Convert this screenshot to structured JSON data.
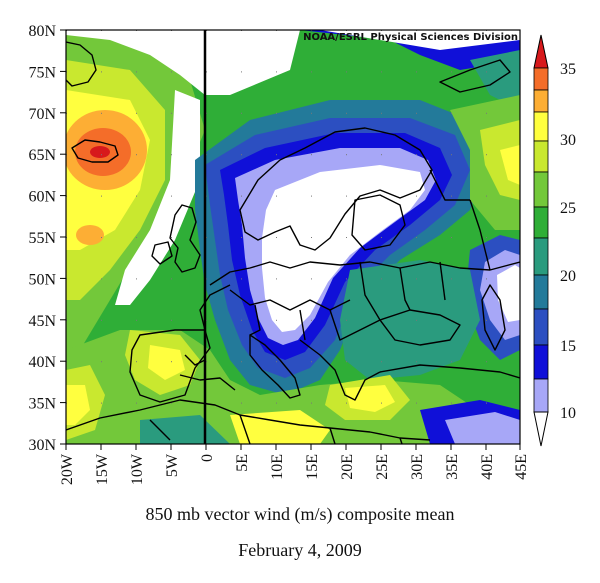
{
  "map": {
    "credit": "NOAA/ESRL Physical Sciences Division",
    "lat_labels": [
      "80N",
      "75N",
      "70N",
      "65N",
      "60N",
      "55N",
      "50N",
      "45N",
      "40N",
      "35N",
      "30N"
    ],
    "lon_labels": [
      "20W",
      "15W",
      "10W",
      "5W",
      "0",
      "5E",
      "10E",
      "15E",
      "20E",
      "25E",
      "30E",
      "35E",
      "40E",
      "45E"
    ],
    "lat_range": [
      30,
      80
    ],
    "lon_range": [
      -20,
      45
    ]
  },
  "colorbar": {
    "labels": [
      "35",
      "30",
      "25",
      "20",
      "15",
      "10"
    ],
    "colors": [
      "#d7191c",
      "#f46d29",
      "#fdae34",
      "#ffff3f",
      "#c9e82f",
      "#73c83a",
      "#2fae37",
      "#2a9b7e",
      "#237a9a",
      "#2c4fc1",
      "#1010d8",
      "#a7a7f7",
      "#ffffff"
    ]
  },
  "caption": {
    "line1": "850 mb vector wind (m/s) composite mean",
    "line2": "February 4, 2009"
  }
}
